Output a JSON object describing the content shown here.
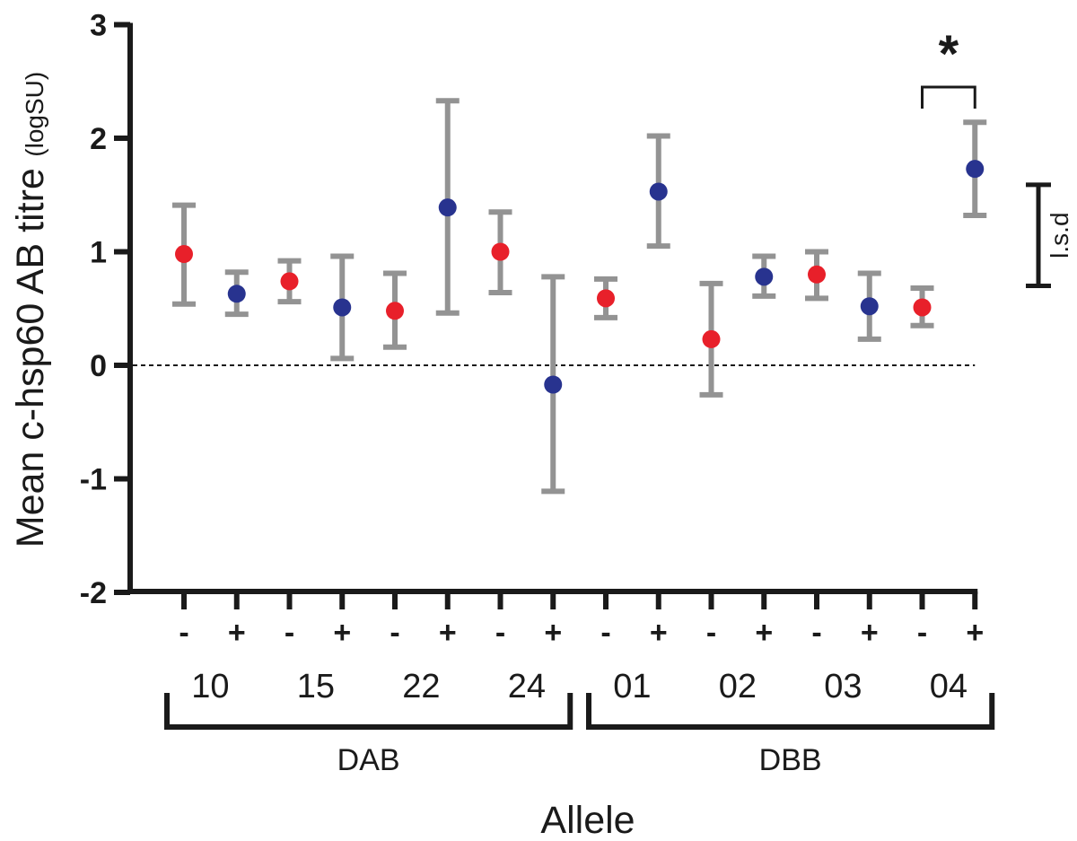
{
  "chart_data": {
    "type": "scatter",
    "ylabel_main": "Mean c-hsp60 AB titre",
    "ylabel_unit": "(logSU)",
    "xlabel": "Allele",
    "ylim": [
      -2,
      3
    ],
    "yticks": [
      "3",
      "2",
      "1",
      "0",
      "-1",
      "-2"
    ],
    "reference_line": 0,
    "signs": [
      "-",
      "+",
      "-",
      "+",
      "-",
      "+",
      "-",
      "+",
      "-",
      "+",
      "-",
      "+",
      "-",
      "+",
      "-",
      "+"
    ],
    "alleles": [
      "10",
      "15",
      "22",
      "24",
      "01",
      "02",
      "03",
      "04"
    ],
    "groups": [
      "DAB",
      "DBB"
    ],
    "points": [
      {
        "allele": "10",
        "sign": "-",
        "mean": 0.98,
        "lower": 0.54,
        "upper": 1.41
      },
      {
        "allele": "10",
        "sign": "+",
        "mean": 0.63,
        "lower": 0.45,
        "upper": 0.82
      },
      {
        "allele": "15",
        "sign": "-",
        "mean": 0.74,
        "lower": 0.56,
        "upper": 0.92
      },
      {
        "allele": "15",
        "sign": "+",
        "mean": 0.51,
        "lower": 0.06,
        "upper": 0.96
      },
      {
        "allele": "22",
        "sign": "-",
        "mean": 0.48,
        "lower": 0.16,
        "upper": 0.81
      },
      {
        "allele": "22",
        "sign": "+",
        "mean": 1.39,
        "lower": 0.46,
        "upper": 2.33
      },
      {
        "allele": "24",
        "sign": "-",
        "mean": 1.0,
        "lower": 0.64,
        "upper": 1.35
      },
      {
        "allele": "24",
        "sign": "+",
        "mean": -0.17,
        "lower": -1.11,
        "upper": 0.78
      },
      {
        "allele": "01",
        "sign": "-",
        "mean": 0.59,
        "lower": 0.42,
        "upper": 0.76
      },
      {
        "allele": "01",
        "sign": "+",
        "mean": 1.53,
        "lower": 1.05,
        "upper": 2.02
      },
      {
        "allele": "02",
        "sign": "-",
        "mean": 0.23,
        "lower": -0.26,
        "upper": 0.72
      },
      {
        "allele": "02",
        "sign": "+",
        "mean": 0.78,
        "lower": 0.61,
        "upper": 0.96
      },
      {
        "allele": "03",
        "sign": "-",
        "mean": 0.8,
        "lower": 0.59,
        "upper": 1.0
      },
      {
        "allele": "03",
        "sign": "+",
        "mean": 0.52,
        "lower": 0.23,
        "upper": 0.81
      },
      {
        "allele": "04",
        "sign": "-",
        "mean": 0.51,
        "lower": 0.35,
        "upper": 0.68
      },
      {
        "allele": "04",
        "sign": "+",
        "mean": 1.73,
        "lower": 1.32,
        "upper": 2.14
      }
    ],
    "significance_label": "*",
    "significance_pair": [
      "04 -",
      "04 +"
    ],
    "lsd_label": "l.s.d",
    "lsd_range": [
      0.7,
      1.59
    ],
    "colors": {
      "minus": "#e8202a",
      "plus": "#28338f",
      "error_bar": "#939393",
      "axis": "#1a1a1a"
    }
  }
}
